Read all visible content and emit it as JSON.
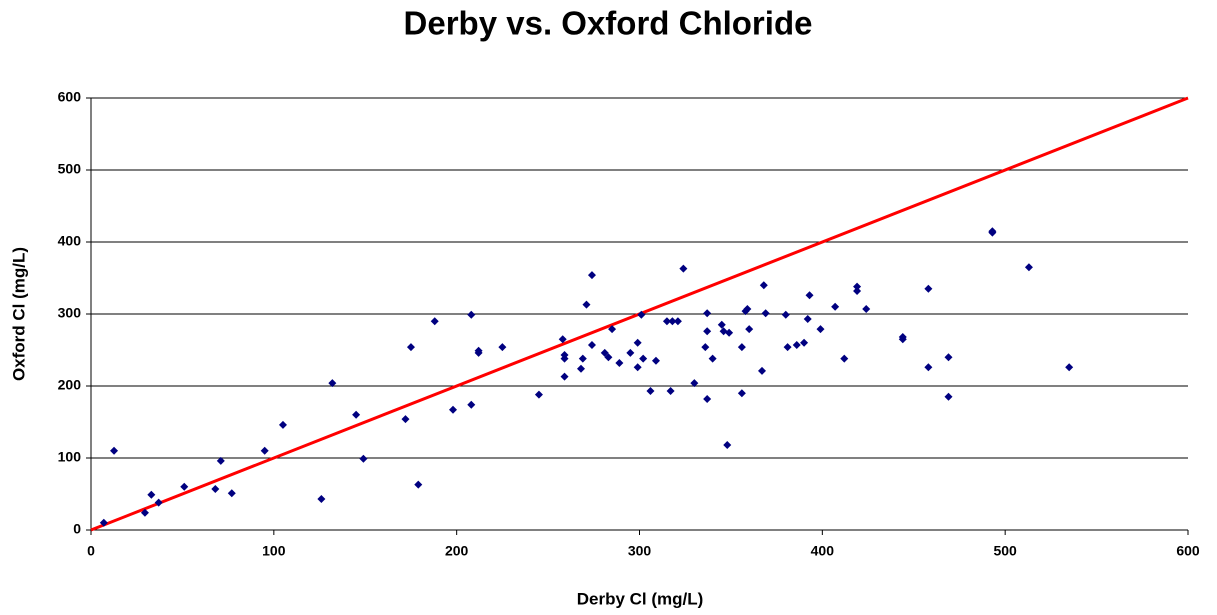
{
  "chart_data": {
    "type": "scatter",
    "title": "Derby vs. Oxford Chloride",
    "x_label": "Derby Cl (mg/L)",
    "y_label": "Oxford Cl (mg/L)",
    "xlim": [
      0,
      600
    ],
    "ylim": [
      0,
      600
    ],
    "xticks": [
      0,
      100,
      200,
      300,
      400,
      500,
      600
    ],
    "yticks": [
      0,
      100,
      200,
      300,
      400,
      500,
      600
    ],
    "grid": true,
    "marker": "diamond",
    "series": [
      {
        "color": "#000080",
        "x": [
          7,
          12.6,
          29.5,
          33,
          37,
          51,
          68,
          71,
          77,
          95,
          105,
          126,
          132,
          145,
          149,
          172,
          175,
          179,
          188,
          198,
          208,
          208,
          212,
          212,
          225,
          245,
          258,
          259,
          259,
          259,
          268,
          269,
          271,
          274,
          274,
          281,
          283,
          285,
          289,
          295,
          299,
          299,
          301,
          302,
          306,
          309,
          315,
          317,
          318,
          321,
          324,
          330,
          336,
          337,
          337,
          337,
          340,
          345,
          346,
          348,
          349,
          356,
          356,
          358,
          359,
          360,
          367,
          368,
          369,
          380,
          381,
          386,
          390,
          392,
          393,
          399,
          407,
          412,
          419,
          419,
          424,
          444,
          444,
          458,
          458,
          469,
          469,
          493,
          493,
          513,
          535
        ],
        "values": [
          10,
          110,
          24,
          49,
          38,
          60,
          57,
          96,
          51,
          110,
          146,
          43,
          204,
          160,
          99,
          154,
          254,
          63,
          290,
          167,
          299,
          174,
          246,
          249,
          254,
          188,
          265,
          243,
          238,
          213,
          224,
          238,
          313,
          354,
          257,
          246,
          240,
          279,
          232,
          246,
          260,
          226,
          299,
          238,
          193,
          235,
          290,
          193,
          290,
          290,
          363,
          204,
          254,
          301,
          276,
          182,
          238,
          285,
          276,
          118,
          274,
          254,
          190,
          304,
          307,
          279,
          221,
          340,
          301,
          299,
          254,
          257,
          260,
          293,
          326,
          279,
          310,
          238,
          338,
          332,
          307,
          268,
          265,
          226,
          335,
          240,
          185,
          413,
          415,
          365,
          226
        ]
      }
    ],
    "line": {
      "color": "#ff0000",
      "x": [
        0,
        600
      ],
      "values": [
        0,
        600
      ]
    }
  }
}
